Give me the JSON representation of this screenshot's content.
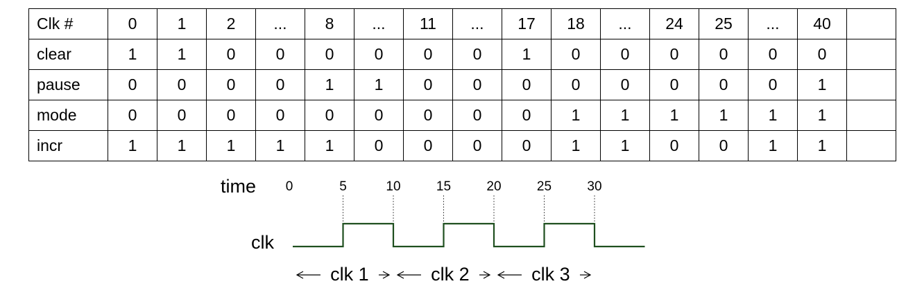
{
  "table": {
    "rows": [
      {
        "label": "Clk #",
        "cells": [
          "0",
          "1",
          "2",
          "...",
          "8",
          "...",
          "11",
          "...",
          "17",
          "18",
          "...",
          "24",
          "25",
          "...",
          "40",
          ""
        ]
      },
      {
        "label": "clear",
        "cells": [
          "1",
          "1",
          "0",
          "0",
          "0",
          "0",
          "0",
          "0",
          "1",
          "0",
          "0",
          "0",
          "0",
          "0",
          "0",
          ""
        ]
      },
      {
        "label": "pause",
        "cells": [
          "0",
          "0",
          "0",
          "0",
          "1",
          "1",
          "0",
          "0",
          "0",
          "0",
          "0",
          "0",
          "0",
          "0",
          "1",
          ""
        ]
      },
      {
        "label": "mode",
        "cells": [
          "0",
          "0",
          "0",
          "0",
          "0",
          "0",
          "0",
          "0",
          "0",
          "1",
          "1",
          "1",
          "1",
          "1",
          "1",
          ""
        ]
      },
      {
        "label": "incr",
        "cells": [
          "1",
          "1",
          "1",
          "1",
          "1",
          "0",
          "0",
          "0",
          "0",
          "1",
          "1",
          "0",
          "0",
          "1",
          "1",
          ""
        ]
      }
    ]
  },
  "timing": {
    "time_label": "time",
    "signal_label": "clk",
    "ticks": [
      "0",
      "5",
      "10",
      "15",
      "20",
      "25",
      "30"
    ],
    "clock_labels": [
      "clk 1",
      "clk 2",
      "clk 3"
    ],
    "line_color": "#1f4f1f"
  }
}
